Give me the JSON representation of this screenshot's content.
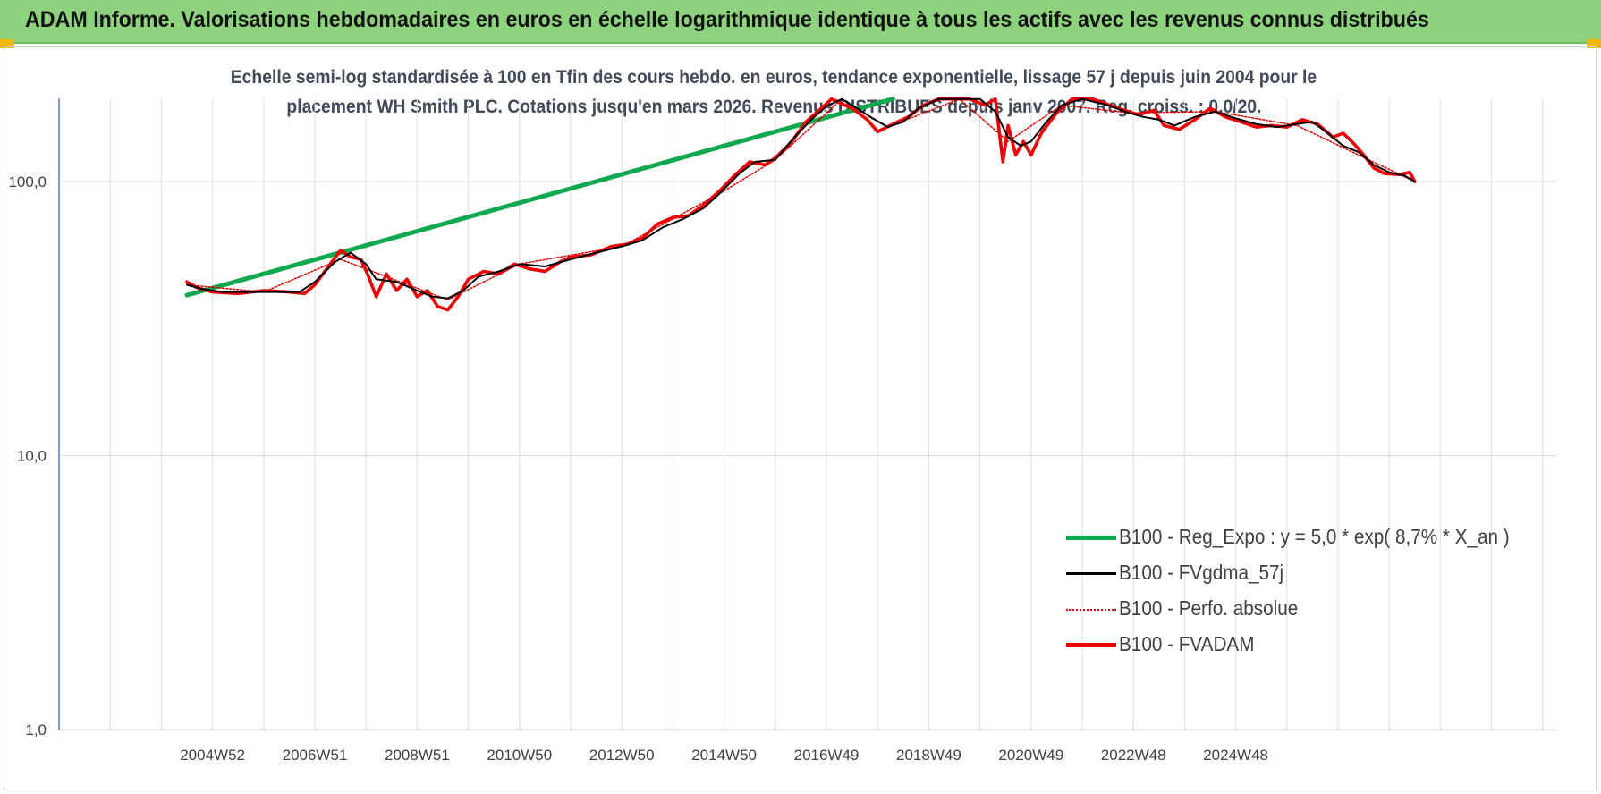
{
  "banner": {
    "title": "ADAM Informe. Valorisations hebdomadaires en euros en échelle logarithmique identique à tous les actifs avec les revenus connus distribués"
  },
  "colors": {
    "banner": "#8dd37e",
    "regression": "#11a84f",
    "smoothed": "#000000",
    "absolute": "#e00000",
    "fvadam": "#ee0000"
  },
  "chart_data": {
    "type": "line",
    "title_line1": "Echelle semi-log standardisée à 100 en Tfin des cours hebdo. en euros, tendance exponentielle, lissage 57 j depuis juin 2004 pour le",
    "title_line2": "placement WH Smith PLC. Cotations jusqu'en mars 2026. Revenus DISTRIBUES depuis janv 2007. Reg. croiss. : 0,0/20.",
    "y_scale": "log",
    "ylim": [
      1,
      200
    ],
    "y_ticks": [
      {
        "value": 1,
        "label": "1,0"
      },
      {
        "value": 10,
        "label": "10,0"
      },
      {
        "value": 100,
        "label": "100,0"
      }
    ],
    "x_range": [
      "2002-01",
      "2026-04"
    ],
    "x_ticks": [
      "2004W52",
      "2006W51",
      "2008W51",
      "2010W50",
      "2012W50",
      "2014W50",
      "2016W49",
      "2018W49",
      "2020W49",
      "2022W48",
      "2024W48"
    ],
    "grid": true,
    "legend_position": "bottom-right",
    "series": [
      {
        "name": "B100 - Reg_Expo : y = 5,0 * exp( 8,7% *  X_an )",
        "style": "thick-green",
        "points": [
          [
            2004.5,
            38.5
          ],
          [
            2018.3,
            200
          ]
        ]
      },
      {
        "name": "B100 - FVgdma_57j",
        "style": "thin-black",
        "points": [
          [
            2004.5,
            42
          ],
          [
            2004.8,
            40.5
          ],
          [
            2005.2,
            39.5
          ],
          [
            2006.0,
            39.5
          ],
          [
            2006.7,
            39.5
          ],
          [
            2007.0,
            43
          ],
          [
            2007.4,
            51
          ],
          [
            2007.7,
            55
          ],
          [
            2008.0,
            50
          ],
          [
            2008.2,
            44
          ],
          [
            2008.6,
            43
          ],
          [
            2009.0,
            40
          ],
          [
            2009.3,
            38
          ],
          [
            2009.6,
            37.5
          ],
          [
            2009.9,
            40
          ],
          [
            2010.2,
            45
          ],
          [
            2010.6,
            47
          ],
          [
            2011.0,
            50
          ],
          [
            2011.5,
            49
          ],
          [
            2012.0,
            52
          ],
          [
            2012.5,
            55
          ],
          [
            2013.0,
            58
          ],
          [
            2013.4,
            61
          ],
          [
            2013.8,
            68
          ],
          [
            2014.2,
            73
          ],
          [
            2014.6,
            80
          ],
          [
            2014.9,
            90
          ],
          [
            2015.3,
            107
          ],
          [
            2015.6,
            118
          ],
          [
            2016.0,
            120
          ],
          [
            2016.3,
            140
          ],
          [
            2016.7,
            168
          ],
          [
            2017.0,
            188
          ],
          [
            2017.3,
            200
          ],
          [
            2017.6,
            185
          ],
          [
            2017.9,
            170
          ],
          [
            2018.2,
            158
          ],
          [
            2018.5,
            165
          ],
          [
            2018.8,
            185
          ],
          [
            2019.2,
            200
          ],
          [
            2019.6,
            200
          ],
          [
            2020.0,
            200
          ],
          [
            2020.3,
            180
          ],
          [
            2020.55,
            145
          ],
          [
            2020.8,
            135
          ],
          [
            2021.0,
            140
          ],
          [
            2021.3,
            165
          ],
          [
            2021.6,
            190
          ],
          [
            2022.0,
            200
          ],
          [
            2022.5,
            190
          ],
          [
            2022.9,
            178
          ],
          [
            2023.2,
            172
          ],
          [
            2023.5,
            168
          ],
          [
            2023.8,
            160
          ],
          [
            2024.2,
            172
          ],
          [
            2024.6,
            180
          ],
          [
            2025.0,
            170
          ],
          [
            2025.4,
            162
          ],
          [
            2025.8,
            158
          ],
          [
            2026.2,
            162
          ],
          [
            2026.5,
            165
          ],
          [
            2026.8,
            150
          ],
          [
            2027.1,
            135
          ],
          [
            2027.4,
            128
          ],
          [
            2027.7,
            115
          ],
          [
            2028.0,
            108
          ],
          [
            2028.3,
            105
          ],
          [
            2028.5,
            100
          ]
        ]
      },
      {
        "name": "B100 - Perfo. absolue",
        "style": "dotted-red",
        "points": [
          [
            2004.5,
            42
          ],
          [
            2006.0,
            39.5
          ],
          [
            2007.5,
            52
          ],
          [
            2009.6,
            37
          ],
          [
            2011.0,
            50
          ],
          [
            2013.0,
            58
          ],
          [
            2014.9,
            90
          ],
          [
            2016.0,
            120
          ],
          [
            2017.3,
            200
          ],
          [
            2018.2,
            158
          ],
          [
            2019.6,
            200
          ],
          [
            2020.55,
            140
          ],
          [
            2021.6,
            190
          ],
          [
            2022.9,
            178
          ],
          [
            2024.6,
            180
          ],
          [
            2026.2,
            160
          ],
          [
            2027.4,
            125
          ],
          [
            2028.5,
            100
          ]
        ]
      },
      {
        "name": "B100 - FVADAM",
        "style": "thick-red",
        "points": [
          [
            2004.5,
            43
          ],
          [
            2004.7,
            41
          ],
          [
            2005.0,
            39.5
          ],
          [
            2005.5,
            39
          ],
          [
            2006.0,
            40
          ],
          [
            2006.5,
            39.5
          ],
          [
            2006.8,
            39
          ],
          [
            2007.0,
            42
          ],
          [
            2007.3,
            50
          ],
          [
            2007.5,
            56
          ],
          [
            2007.7,
            53
          ],
          [
            2007.9,
            52
          ],
          [
            2008.05,
            45
          ],
          [
            2008.2,
            38
          ],
          [
            2008.4,
            46
          ],
          [
            2008.6,
            40
          ],
          [
            2008.8,
            44
          ],
          [
            2009.0,
            38
          ],
          [
            2009.2,
            40
          ],
          [
            2009.4,
            35
          ],
          [
            2009.6,
            34
          ],
          [
            2009.8,
            38
          ],
          [
            2010.0,
            44
          ],
          [
            2010.3,
            47
          ],
          [
            2010.6,
            46
          ],
          [
            2010.9,
            50
          ],
          [
            2011.2,
            48
          ],
          [
            2011.5,
            47
          ],
          [
            2011.8,
            51
          ],
          [
            2012.0,
            53
          ],
          [
            2012.4,
            54
          ],
          [
            2012.8,
            58
          ],
          [
            2013.1,
            59
          ],
          [
            2013.4,
            62
          ],
          [
            2013.7,
            70
          ],
          [
            2014.0,
            74
          ],
          [
            2014.3,
            75
          ],
          [
            2014.6,
            82
          ],
          [
            2014.9,
            92
          ],
          [
            2015.2,
            105
          ],
          [
            2015.5,
            118
          ],
          [
            2015.8,
            115
          ],
          [
            2016.0,
            122
          ],
          [
            2016.3,
            138
          ],
          [
            2016.6,
            165
          ],
          [
            2016.9,
            185
          ],
          [
            2017.1,
            200
          ],
          [
            2017.5,
            185
          ],
          [
            2017.8,
            168
          ],
          [
            2018.0,
            152
          ],
          [
            2018.3,
            162
          ],
          [
            2018.6,
            172
          ],
          [
            2018.9,
            190
          ],
          [
            2019.2,
            200
          ],
          [
            2019.8,
            200
          ],
          [
            2020.1,
            190
          ],
          [
            2020.3,
            200
          ],
          [
            2020.45,
            118
          ],
          [
            2020.55,
            160
          ],
          [
            2020.7,
            125
          ],
          [
            2020.85,
            140
          ],
          [
            2021.0,
            125
          ],
          [
            2021.2,
            150
          ],
          [
            2021.5,
            178
          ],
          [
            2021.8,
            200
          ],
          [
            2022.2,
            200
          ],
          [
            2022.6,
            188
          ],
          [
            2022.9,
            180
          ],
          [
            2023.1,
            175
          ],
          [
            2023.4,
            182
          ],
          [
            2023.6,
            160
          ],
          [
            2023.9,
            155
          ],
          [
            2024.2,
            168
          ],
          [
            2024.5,
            185
          ],
          [
            2024.8,
            172
          ],
          [
            2025.1,
            165
          ],
          [
            2025.4,
            158
          ],
          [
            2025.7,
            160
          ],
          [
            2026.0,
            158
          ],
          [
            2026.3,
            168
          ],
          [
            2026.6,
            162
          ],
          [
            2026.9,
            145
          ],
          [
            2027.1,
            150
          ],
          [
            2027.3,
            138
          ],
          [
            2027.5,
            125
          ],
          [
            2027.7,
            112
          ],
          [
            2027.9,
            107
          ],
          [
            2028.2,
            106
          ],
          [
            2028.4,
            108
          ],
          [
            2028.5,
            100
          ]
        ]
      }
    ]
  }
}
